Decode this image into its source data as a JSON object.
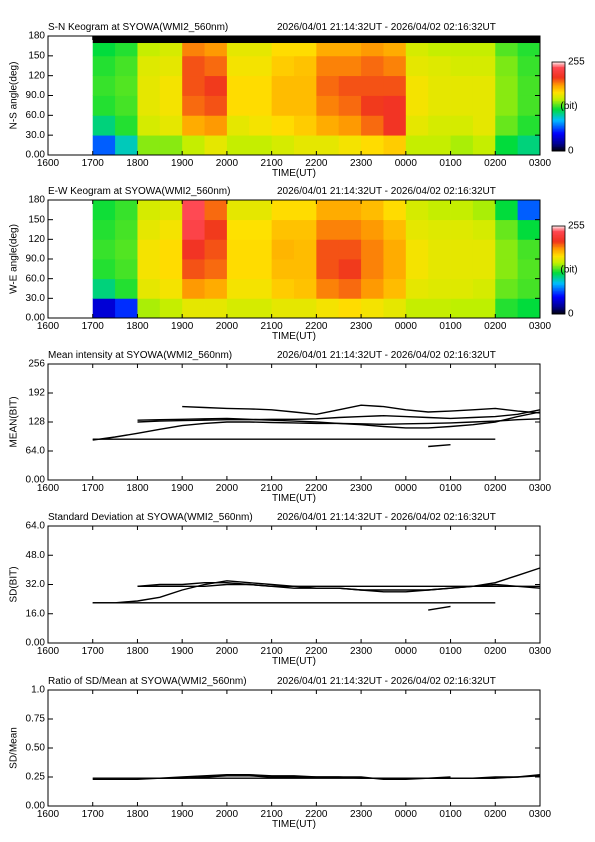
{
  "chart_data": [
    {
      "type": "heatmap",
      "title": "S-N Keogram at SYOWA(WMI2_560nm)",
      "subtitle": "2026/04/01 21:14:32UT - 2026/04/02 02:16:32UT",
      "xlabel": "TIME(UT)",
      "ylabel": "N-S angle(deg)",
      "xlim": [
        16,
        27
      ],
      "ylim": [
        0,
        180
      ],
      "xticks": [
        {
          "value": 16,
          "label": "1600"
        },
        {
          "value": 17,
          "label": "1700"
        },
        {
          "value": 18,
          "label": "1800"
        },
        {
          "value": 19,
          "label": "1900"
        },
        {
          "value": 20,
          "label": "2000"
        },
        {
          "value": 21,
          "label": "2100"
        },
        {
          "value": 22,
          "label": "2200"
        },
        {
          "value": 23,
          "label": "2300"
        },
        {
          "value": 24,
          "label": "0000"
        },
        {
          "value": 25,
          "label": "0100"
        },
        {
          "value": 26,
          "label": "0200"
        },
        {
          "value": 27,
          "label": "0300"
        }
      ],
      "yticks": [
        {
          "value": 0,
          "label": "0.00"
        },
        {
          "value": 30,
          "label": "30.0"
        },
        {
          "value": 60,
          "label": "60.0"
        },
        {
          "value": 90,
          "label": "90.0"
        },
        120,
        150,
        180
      ],
      "zlim": [
        0,
        255
      ],
      "zticks": [
        0,
        255
      ],
      "colorbar_label": "(bit)",
      "xedges": [
        17,
        17.5,
        18,
        18.5,
        19,
        19.5,
        20,
        20.5,
        21,
        21.5,
        22,
        22.5,
        23,
        23.5,
        24,
        24.5,
        25,
        25.5,
        26,
        26.5,
        27
      ],
      "yedges": [
        0,
        30,
        60,
        90,
        120,
        150,
        170,
        180
      ],
      "z": [
        [
          70,
          100,
          140,
          140,
          150,
          160,
          150,
          150,
          155,
          160,
          160,
          165,
          170,
          175,
          150,
          150,
          145,
          150,
          120,
          110
        ],
        [
          110,
          125,
          155,
          160,
          185,
          190,
          160,
          165,
          170,
          175,
          185,
          190,
          200,
          215,
          160,
          155,
          155,
          160,
          135,
          125
        ],
        [
          125,
          130,
          160,
          165,
          200,
          205,
          170,
          170,
          180,
          180,
          195,
          200,
          210,
          215,
          165,
          160,
          160,
          160,
          140,
          130
        ],
        [
          128,
          132,
          160,
          165,
          205,
          210,
          170,
          170,
          180,
          180,
          200,
          205,
          205,
          205,
          165,
          160,
          160,
          160,
          140,
          130
        ],
        [
          125,
          130,
          158,
          160,
          205,
          200,
          165,
          165,
          175,
          178,
          195,
          195,
          200,
          195,
          160,
          158,
          155,
          155,
          138,
          128
        ],
        [
          120,
          125,
          150,
          155,
          195,
          190,
          160,
          160,
          170,
          170,
          185,
          185,
          190,
          185,
          155,
          150,
          150,
          150,
          132,
          125
        ],
        [
          0,
          0,
          0,
          0,
          0,
          0,
          0,
          0,
          0,
          0,
          0,
          0,
          0,
          0,
          0,
          0,
          0,
          0,
          0,
          0
        ]
      ]
    },
    {
      "type": "heatmap",
      "title": "E-W Keogram at SYOWA(WMI2_560nm)",
      "subtitle": "2026/04/01 21:14:32UT - 2026/04/02 02:16:32UT",
      "xlabel": "TIME(UT)",
      "ylabel": "W-E angle(deg)",
      "xlim": [
        16,
        27
      ],
      "ylim": [
        0,
        180
      ],
      "xticks": [
        {
          "value": 16,
          "label": "1600"
        },
        {
          "value": 17,
          "label": "1700"
        },
        {
          "value": 18,
          "label": "1800"
        },
        {
          "value": 19,
          "label": "1900"
        },
        {
          "value": 20,
          "label": "2000"
        },
        {
          "value": 21,
          "label": "2100"
        },
        {
          "value": 22,
          "label": "2200"
        },
        {
          "value": 23,
          "label": "2300"
        },
        {
          "value": 24,
          "label": "0000"
        },
        {
          "value": 25,
          "label": "0100"
        },
        {
          "value": 26,
          "label": "0200"
        },
        {
          "value": 27,
          "label": "0300"
        }
      ],
      "yticks": [
        {
          "value": 0,
          "label": "0.00"
        },
        {
          "value": 30,
          "label": "30.0"
        },
        {
          "value": 60,
          "label": "60.0"
        },
        {
          "value": 90,
          "label": "90.0"
        },
        120,
        150,
        180
      ],
      "zlim": [
        0,
        255
      ],
      "zticks": [
        0,
        255
      ],
      "colorbar_label": "(bit)",
      "xedges": [
        17,
        17.5,
        18,
        18.5,
        19,
        19.5,
        20,
        20.5,
        21,
        21.5,
        22,
        22.5,
        23,
        23.5,
        24,
        24.5,
        25,
        25.5,
        26,
        26.5,
        27
      ],
      "yedges": [
        0,
        30,
        60,
        90,
        120,
        150,
        180
      ],
      "z": [
        [
          40,
          60,
          145,
          150,
          160,
          160,
          155,
          155,
          160,
          160,
          165,
          170,
          165,
          160,
          150,
          150,
          148,
          148,
          125,
          120
        ],
        [
          110,
          125,
          160,
          165,
          190,
          185,
          165,
          165,
          175,
          178,
          195,
          200,
          190,
          180,
          160,
          158,
          158,
          155,
          135,
          130
        ],
        [
          125,
          130,
          165,
          170,
          205,
          200,
          170,
          170,
          180,
          180,
          205,
          210,
          195,
          185,
          165,
          160,
          160,
          160,
          140,
          132
        ],
        [
          128,
          132,
          165,
          170,
          215,
          205,
          170,
          170,
          182,
          180,
          205,
          205,
          195,
          185,
          165,
          160,
          160,
          160,
          140,
          130
        ],
        [
          125,
          130,
          160,
          165,
          235,
          210,
          168,
          168,
          178,
          178,
          195,
          195,
          190,
          180,
          160,
          158,
          158,
          155,
          135,
          120
        ],
        [
          122,
          128,
          155,
          158,
          240,
          200,
          160,
          160,
          170,
          170,
          185,
          185,
          180,
          170,
          155,
          150,
          150,
          145,
          120,
          70
        ]
      ]
    },
    {
      "type": "line",
      "title": "Mean intensity at SYOWA(WMI2_560nm)",
      "subtitle": "2026/04/01 21:14:32UT - 2026/04/02 02:16:32UT",
      "xlabel": "TIME(UT)",
      "ylabel": "MEAN(BIT)",
      "xlim": [
        16,
        27
      ],
      "ylim": [
        0,
        256
      ],
      "xticks": [
        {
          "value": 16,
          "label": "1600"
        },
        {
          "value": 17,
          "label": "1700"
        },
        {
          "value": 18,
          "label": "1800"
        },
        {
          "value": 19,
          "label": "1900"
        },
        {
          "value": 20,
          "label": "2000"
        },
        {
          "value": 21,
          "label": "2100"
        },
        {
          "value": 22,
          "label": "2200"
        },
        {
          "value": 23,
          "label": "2300"
        },
        {
          "value": 24,
          "label": "0000"
        },
        {
          "value": 25,
          "label": "0100"
        },
        {
          "value": 26,
          "label": "0200"
        },
        {
          "value": 27,
          "label": "0300"
        }
      ],
      "yticks": [
        {
          "value": 0,
          "label": "0.00"
        },
        {
          "value": 64,
          "label": "64.0"
        },
        128,
        192,
        256
      ],
      "color": "#000000",
      "x": [
        17,
        17.5,
        18,
        18.5,
        19,
        19.5,
        20,
        20.5,
        21,
        21.5,
        22,
        22.5,
        23,
        23.5,
        24,
        24.5,
        25,
        25.5,
        26,
        26.5,
        27
      ],
      "series": [
        {
          "values": [
            88,
            95,
            103,
            112,
            120,
            125,
            128,
            128,
            127,
            126,
            125,
            125,
            124,
            123,
            124,
            125,
            126,
            128,
            130,
            133,
            135
          ]
        },
        {
          "values": [
            90,
            90,
            90,
            90,
            90,
            90,
            90,
            90,
            90,
            90,
            90,
            90,
            90,
            90,
            90,
            90,
            90,
            90,
            90,
            null,
            null
          ]
        },
        {
          "values": [
            null,
            null,
            null,
            null,
            162,
            160,
            158,
            157,
            155,
            150,
            145,
            155,
            165,
            162,
            155,
            150,
            152,
            155,
            158,
            152,
            148
          ]
        },
        {
          "values": [
            null,
            null,
            132,
            133,
            134,
            135,
            136,
            134,
            132,
            130,
            128,
            125,
            122,
            118,
            115,
            115,
            118,
            122,
            128,
            140,
            150
          ]
        },
        {
          "values": [
            null,
            null,
            128,
            130,
            131,
            132,
            133,
            133,
            134,
            134,
            135,
            138,
            140,
            142,
            140,
            138,
            136,
            138,
            140,
            145,
            155
          ]
        },
        {
          "values": [
            null,
            null,
            null,
            null,
            null,
            null,
            null,
            null,
            null,
            null,
            null,
            null,
            null,
            null,
            null,
            74,
            78,
            null,
            null,
            null,
            null
          ]
        }
      ]
    },
    {
      "type": "line",
      "title": "Standard Deviation at SYOWA(WMI2_560nm)",
      "subtitle": "2026/04/01 21:14:32UT - 2026/04/02 02:16:32UT",
      "xlabel": "TIME(UT)",
      "ylabel": "SD(BIT)",
      "xlim": [
        16,
        27
      ],
      "ylim": [
        0,
        64
      ],
      "xticks": [
        {
          "value": 16,
          "label": "1600"
        },
        {
          "value": 17,
          "label": "1700"
        },
        {
          "value": 18,
          "label": "1800"
        },
        {
          "value": 19,
          "label": "1900"
        },
        {
          "value": 20,
          "label": "2000"
        },
        {
          "value": 21,
          "label": "2100"
        },
        {
          "value": 22,
          "label": "2200"
        },
        {
          "value": 23,
          "label": "2300"
        },
        {
          "value": 24,
          "label": "0000"
        },
        {
          "value": 25,
          "label": "0100"
        },
        {
          "value": 26,
          "label": "0200"
        },
        {
          "value": 27,
          "label": "0300"
        }
      ],
      "yticks": [
        {
          "value": 0,
          "label": "0.00"
        },
        {
          "value": 16,
          "label": "16.0"
        },
        {
          "value": 32,
          "label": "32.0"
        },
        {
          "value": 48,
          "label": "48.0"
        },
        {
          "value": 64,
          "label": "64.0"
        }
      ],
      "color": "#000000",
      "x": [
        17,
        17.5,
        18,
        18.5,
        19,
        19.5,
        20,
        20.5,
        21,
        21.5,
        22,
        22.5,
        23,
        23.5,
        24,
        24.5,
        25,
        25.5,
        26,
        26.5,
        27
      ],
      "series": [
        {
          "values": [
            22,
            22,
            22,
            22,
            22,
            22,
            22,
            22,
            22,
            22,
            22,
            22,
            22,
            22,
            22,
            22,
            22,
            22,
            22,
            null,
            null
          ]
        },
        {
          "values": [
            22,
            22,
            23,
            25,
            29,
            32,
            34,
            33,
            32,
            31,
            30,
            30,
            29,
            29,
            29,
            29,
            30,
            31,
            33,
            37,
            41
          ]
        },
        {
          "values": [
            null,
            null,
            31,
            31,
            31,
            31,
            32,
            32,
            31,
            31,
            31,
            31,
            31,
            31,
            31,
            31,
            31,
            31,
            31,
            31,
            31
          ]
        },
        {
          "values": [
            null,
            null,
            31,
            32,
            32,
            33,
            33,
            32,
            31,
            30,
            30,
            30,
            29,
            28,
            28,
            29,
            30,
            31,
            32,
            31,
            30
          ]
        },
        {
          "values": [
            null,
            null,
            null,
            null,
            null,
            null,
            null,
            null,
            null,
            null,
            null,
            null,
            null,
            null,
            null,
            18,
            20,
            null,
            null,
            null,
            null
          ]
        }
      ]
    },
    {
      "type": "line",
      "title": "Ratio of SD/Mean at SYOWA(WMI2_560nm)",
      "subtitle": "2026/04/01 21:14:32UT - 2026/04/02 02:16:32UT",
      "xlabel": "TIME(UT)",
      "ylabel": "SD/Mean",
      "xlim": [
        16,
        27
      ],
      "ylim": [
        0,
        1
      ],
      "xticks": [
        {
          "value": 16,
          "label": "1600"
        },
        {
          "value": 17,
          "label": "1700"
        },
        {
          "value": 18,
          "label": "1800"
        },
        {
          "value": 19,
          "label": "1900"
        },
        {
          "value": 20,
          "label": "2000"
        },
        {
          "value": 21,
          "label": "2100"
        },
        {
          "value": 22,
          "label": "2200"
        },
        {
          "value": 23,
          "label": "2300"
        },
        {
          "value": 24,
          "label": "0000"
        },
        {
          "value": 25,
          "label": "0100"
        },
        {
          "value": 26,
          "label": "0200"
        },
        {
          "value": 27,
          "label": "0300"
        }
      ],
      "yticks": [
        {
          "value": 0,
          "label": "0.00"
        },
        0.25,
        {
          "value": 0.5,
          "label": "0.50"
        },
        0.75,
        {
          "value": 1,
          "label": "1.0"
        }
      ],
      "color": "#000000",
      "x": [
        17,
        17.5,
        18,
        18.5,
        19,
        19.5,
        20,
        20.5,
        21,
        21.5,
        22,
        22.5,
        23,
        23.5,
        24,
        24.5,
        25,
        25.5,
        26,
        26.5,
        27
      ],
      "series": [
        {
          "values": [
            0.23,
            0.23,
            0.23,
            0.24,
            0.24,
            0.25,
            0.26,
            0.26,
            0.25,
            0.25,
            0.25,
            0.25,
            0.24,
            0.24,
            0.24,
            0.24,
            0.24,
            0.24,
            0.24,
            0.25,
            0.26
          ]
        },
        {
          "values": [
            null,
            null,
            0.24,
            0.24,
            0.25,
            0.26,
            0.27,
            0.27,
            0.26,
            0.26,
            0.25,
            0.25,
            0.25,
            0.23,
            0.23,
            0.24,
            0.24,
            0.24,
            0.25,
            0.25,
            0.27
          ]
        },
        {
          "values": [
            0.24,
            0.24,
            0.24,
            0.24,
            0.24,
            0.24,
            0.24,
            0.24,
            0.24,
            0.24,
            0.24,
            0.24,
            0.24,
            0.24,
            0.24,
            0.24,
            0.24,
            0.24,
            0.24,
            null,
            null
          ]
        },
        {
          "values": [
            null,
            null,
            null,
            null,
            null,
            null,
            null,
            null,
            null,
            null,
            null,
            null,
            null,
            null,
            null,
            0.24,
            0.25,
            null,
            null,
            null,
            null
          ]
        }
      ]
    }
  ]
}
